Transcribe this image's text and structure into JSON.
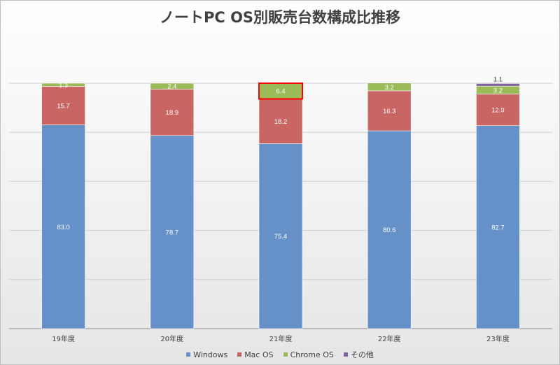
{
  "chart_data": {
    "type": "bar",
    "stacked": true,
    "title": "ノートPC OS別販売台数構成比推移",
    "categories": [
      "19年度",
      "20年度",
      "21年度",
      "22年度",
      "23年度"
    ],
    "series": [
      {
        "name": "Windows",
        "color": "#6590c8",
        "values": [
          83.0,
          78.7,
          75.4,
          80.6,
          82.7
        ]
      },
      {
        "name": "Mac OS",
        "color": "#c96664",
        "values": [
          15.7,
          18.9,
          18.2,
          16.3,
          12.9
        ]
      },
      {
        "name": "Chrome OS",
        "color": "#9bbb59",
        "values": [
          1.3,
          2.4,
          6.4,
          3.2,
          3.2
        ]
      },
      {
        "name": "その他",
        "color": "#8064a2",
        "values": [
          0,
          0,
          0,
          0,
          1.1
        ]
      }
    ],
    "ylim": [
      0,
      100
    ],
    "grid": true,
    "legend": "bottom",
    "highlight": {
      "category": "21年度",
      "series": "Chrome OS",
      "color": "#ff0000"
    }
  }
}
